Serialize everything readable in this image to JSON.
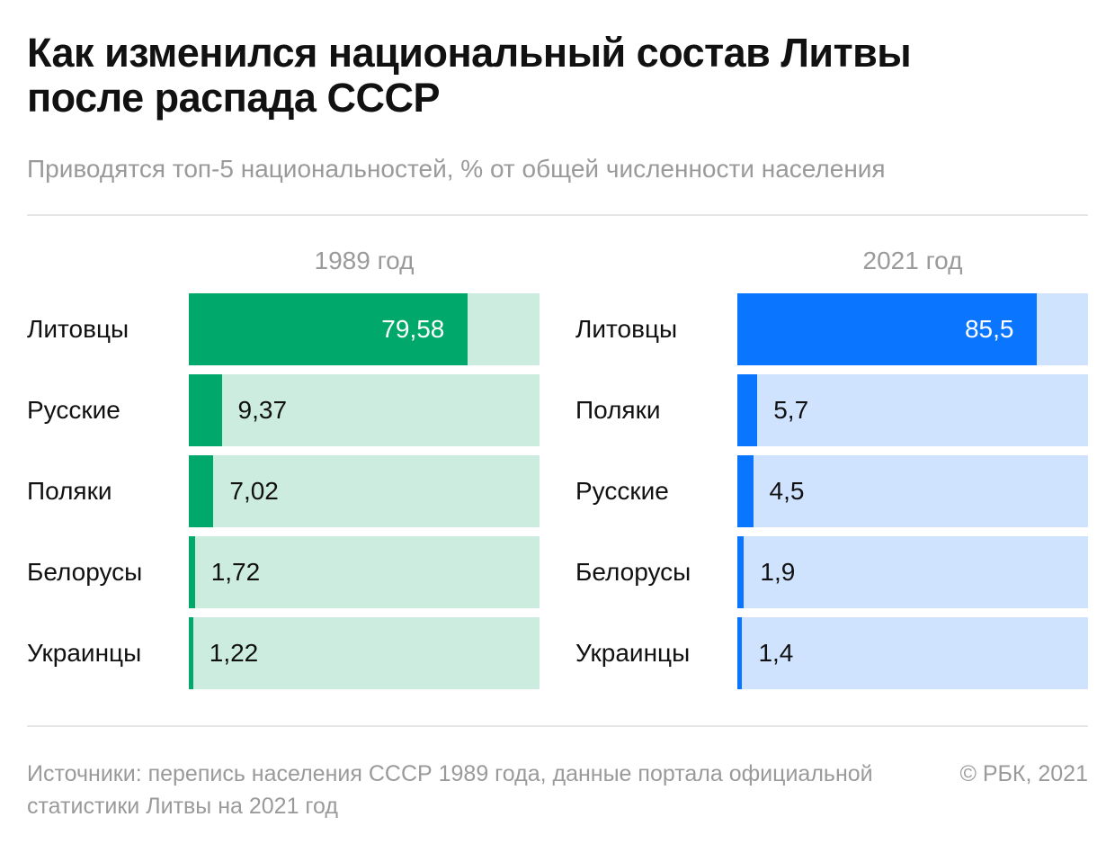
{
  "title": "Как изменился национальный состав Литвы после распада СССР",
  "subtitle": "Приводятся топ-5 национальностей, % от общей численности населения",
  "source": "Источники: перепись населения СССР 1989 года, данные портала официальной статистики Литвы на 2021 год",
  "copyright": "© РБК, 2021",
  "colors": {
    "green": "#00a86b",
    "green_track": "#ccece0",
    "blue": "#0a75ff",
    "blue_track": "#cfe3ff"
  },
  "chart_data": [
    {
      "type": "bar",
      "title": "1989 год",
      "categories": [
        "Литовцы",
        "Русские",
        "Поляки",
        "Белорусы",
        "Украинцы"
      ],
      "values": [
        79.58,
        9.37,
        7.02,
        1.72,
        1.22
      ],
      "value_labels": [
        "79,58",
        "9,37",
        "7,02",
        "1,72",
        "1,22"
      ],
      "xlim": [
        0,
        100
      ],
      "orientation": "horizontal",
      "color": "#00a86b"
    },
    {
      "type": "bar",
      "title": "2021 год",
      "categories": [
        "Литовцы",
        "Поляки",
        "Русские",
        "Белорусы",
        "Украинцы"
      ],
      "values": [
        85.5,
        5.7,
        4.5,
        1.9,
        1.4
      ],
      "value_labels": [
        "85,5",
        "5,7",
        "4,5",
        "1,9",
        "1,4"
      ],
      "xlim": [
        0,
        100
      ],
      "orientation": "horizontal",
      "color": "#0a75ff"
    }
  ]
}
